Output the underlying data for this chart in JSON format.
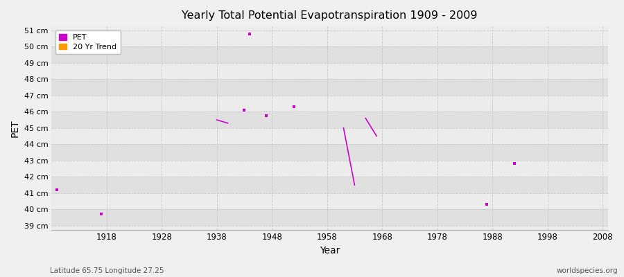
{
  "title": "Yearly Total Potential Evapotranspiration 1909 - 2009",
  "xlabel": "Year",
  "ylabel": "PET",
  "subtitle_left": "Latitude 65.75 Longitude 27.25",
  "subtitle_right": "worldspecies.org",
  "xlim": [
    1908,
    2009
  ],
  "ylim": [
    38.75,
    51.25
  ],
  "yticks": [
    39,
    40,
    41,
    42,
    43,
    44,
    45,
    46,
    47,
    48,
    49,
    50,
    51
  ],
  "xticks": [
    1918,
    1928,
    1938,
    1948,
    1958,
    1968,
    1978,
    1988,
    1998,
    2008
  ],
  "pet_color": "#cc00cc",
  "trend_color": "#ff9900",
  "band_light": "#ececec",
  "band_dark": "#e0e0e0",
  "fig_bg": "#f0f0f0",
  "pet_scatter": [
    [
      1909,
      41.2
    ],
    [
      1917,
      39.7
    ],
    [
      1943,
      46.1
    ],
    [
      1944,
      50.8
    ],
    [
      1947,
      45.75
    ],
    [
      1952,
      46.3
    ],
    [
      1987,
      40.3
    ],
    [
      1992,
      42.8
    ]
  ],
  "pet_line_segments": [
    {
      "x": [
        1938,
        1939,
        1940
      ],
      "y": [
        45.5,
        45.4,
        45.3
      ]
    },
    {
      "x": [
        1961,
        1963
      ],
      "y": [
        45.0,
        41.5
      ]
    },
    {
      "x": [
        1965,
        1967
      ],
      "y": [
        45.6,
        44.5
      ]
    }
  ],
  "legend_pet_label": "PET",
  "legend_trend_label": "20 Yr Trend"
}
